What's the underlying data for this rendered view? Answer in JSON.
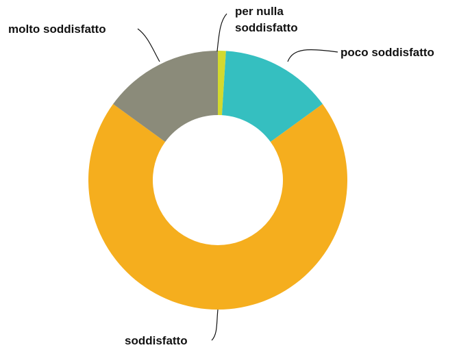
{
  "chart_data": {
    "type": "pie",
    "variant": "donut",
    "title": "",
    "slices": [
      {
        "label": "per nulla soddisfatto",
        "label_lines": [
          "per nulla",
          "soddisfatto"
        ],
        "value": 1,
        "color": "#D3D92E"
      },
      {
        "label": "poco soddisfatto",
        "label_lines": [
          "poco soddisfatto"
        ],
        "value": 14,
        "color": "#35BFC0"
      },
      {
        "label": "soddisfatto",
        "label_lines": [
          "soddisfatto"
        ],
        "value": 70,
        "color": "#F5AE1E"
      },
      {
        "label": "molto soddisfatto",
        "label_lines": [
          "molto soddisfatto"
        ],
        "value": 15,
        "color": "#8B8B7A"
      }
    ],
    "start_angle": "12 o'clock",
    "direction": "clockwise",
    "legend": "none",
    "labels": "outside with leader lines"
  }
}
